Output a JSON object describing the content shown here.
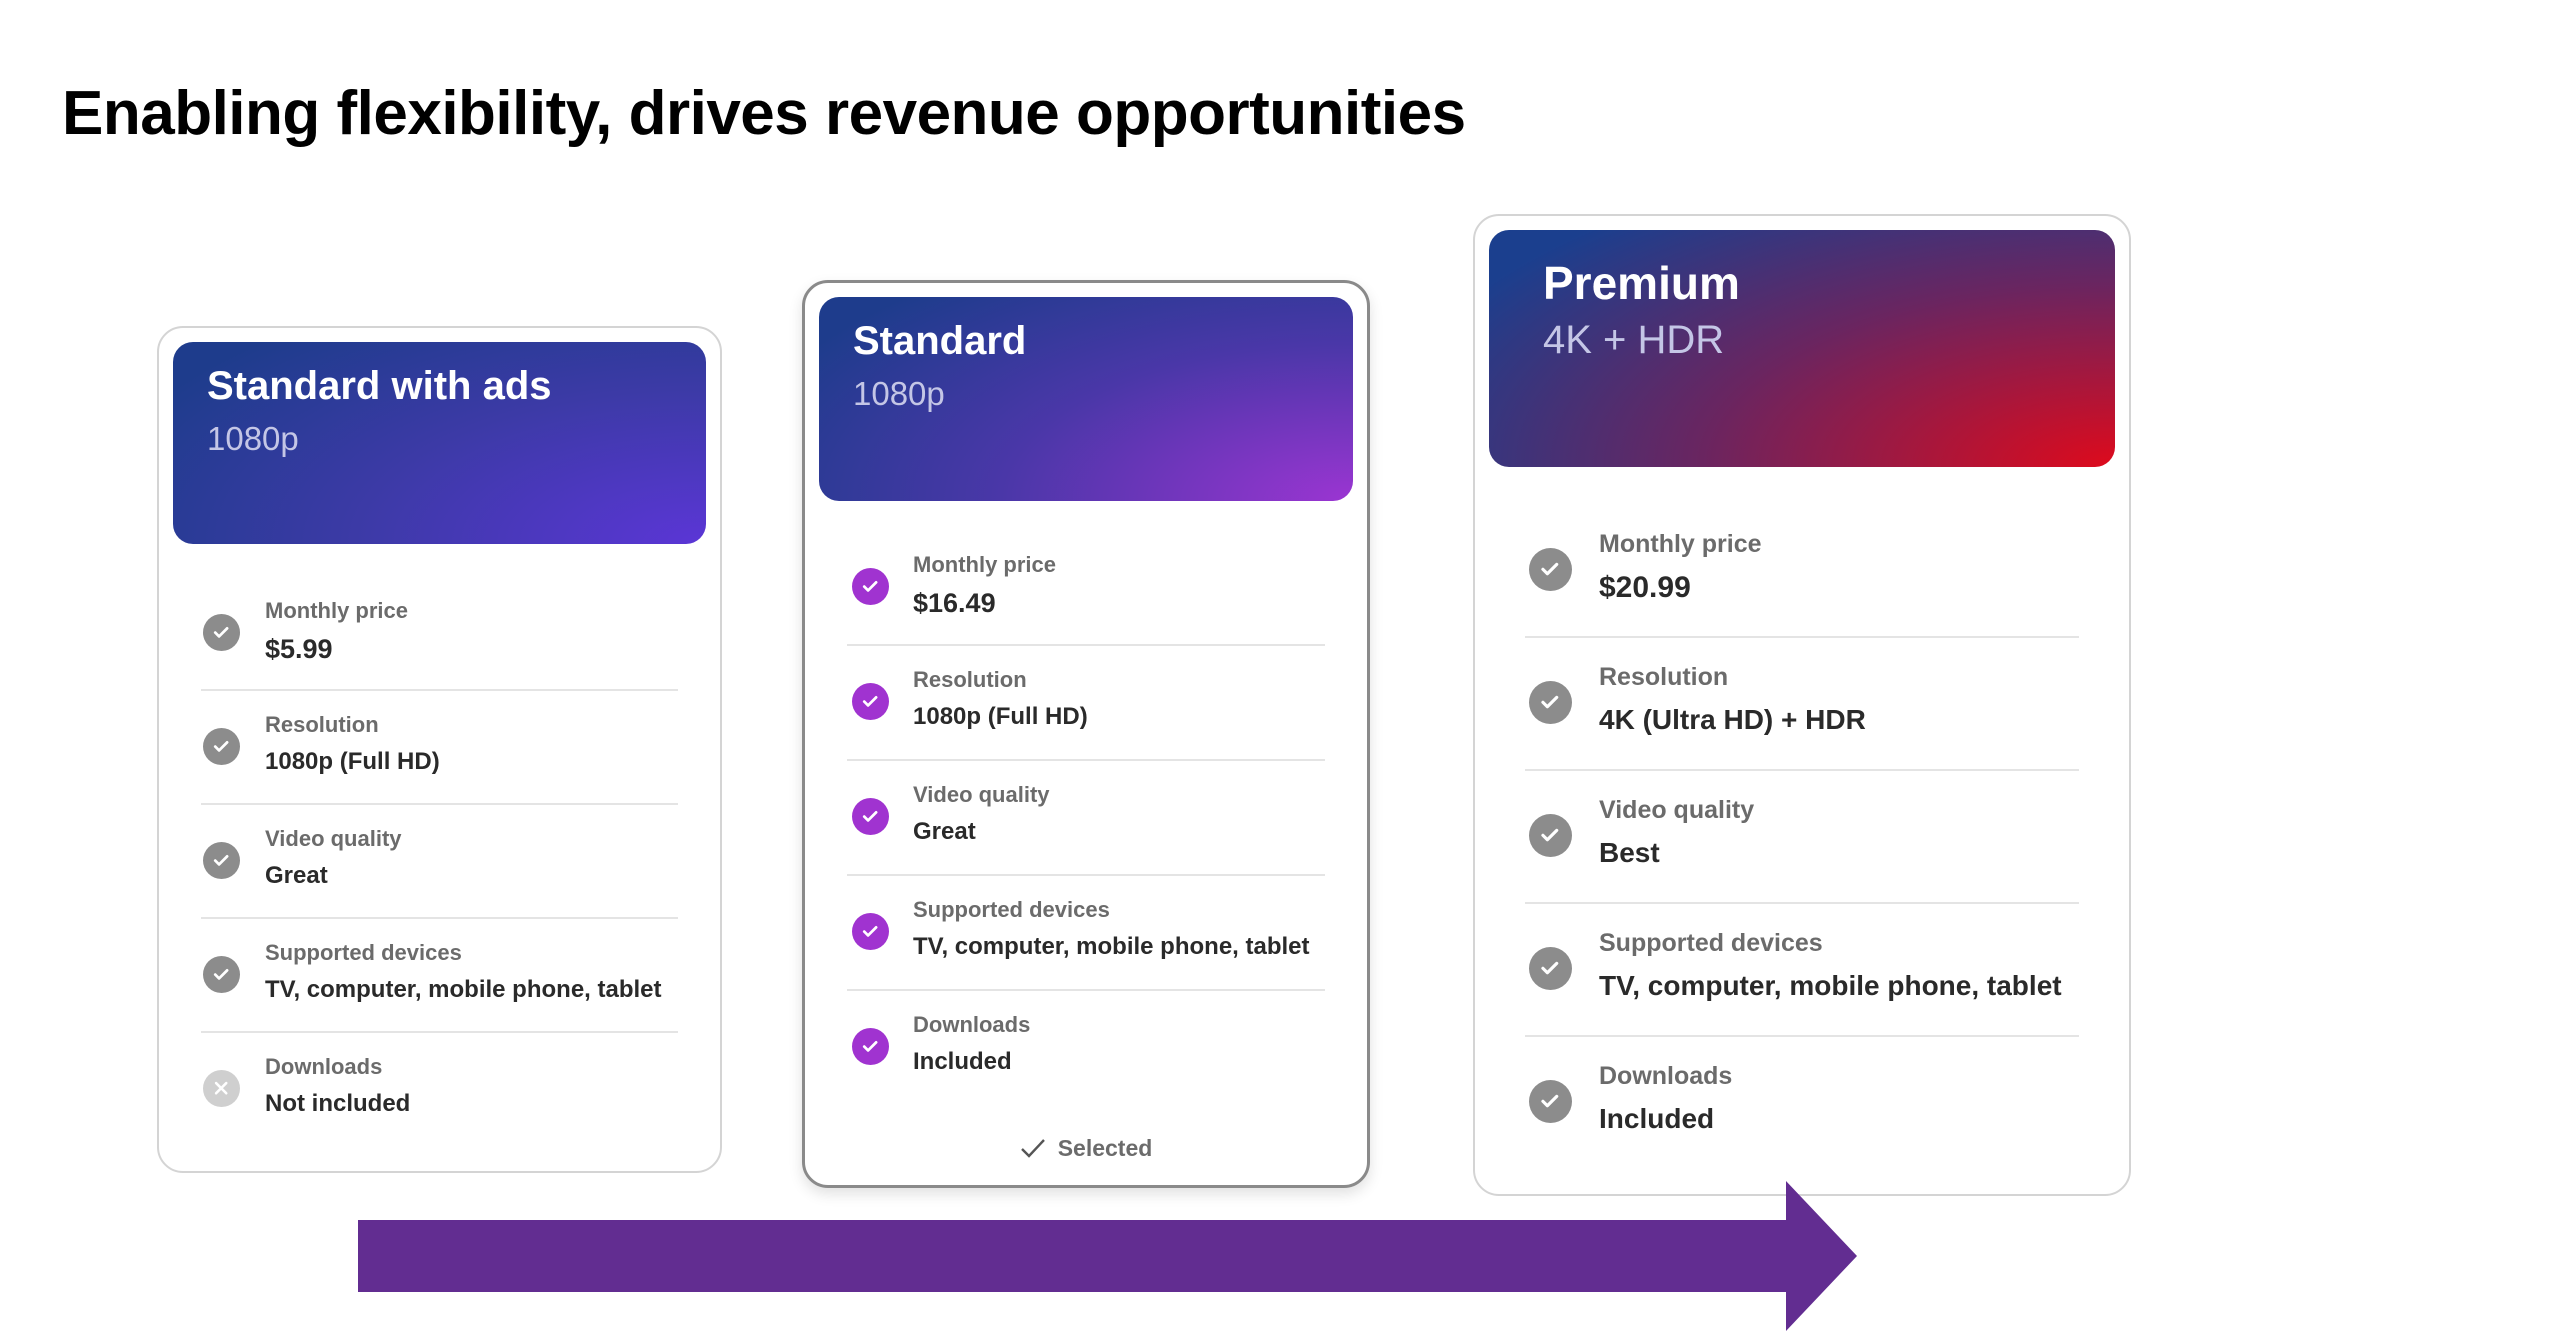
{
  "title": "Enabling flexibility, drives revenue opportunities",
  "colors": {
    "arrow": "#622d91",
    "check_gray": "#8c8c8c",
    "check_purple": "#a033d0",
    "cross_gray": "#cfcfcf"
  },
  "plans": [
    {
      "name": "Standard with ads",
      "subtitle": "1080p",
      "gradient": [
        "#1e3c8c",
        "#3c3aa6",
        "#5b36d6"
      ],
      "check_color": "gray",
      "selected": false,
      "features": [
        {
          "label": "Monthly price",
          "value": "$5.99",
          "icon": "check-icon"
        },
        {
          "label": "Resolution",
          "value": "1080p (Full HD)",
          "icon": "check-icon"
        },
        {
          "label": "Video quality",
          "value": "Great",
          "icon": "check-icon"
        },
        {
          "label": "Supported devices",
          "value": "TV, computer, mobile phone, tablet",
          "icon": "check-icon"
        },
        {
          "label": "Downloads",
          "value": "Not included",
          "icon": "cross-icon"
        }
      ]
    },
    {
      "name": "Standard",
      "subtitle": "1080p",
      "gradient": [
        "#1e3c8c",
        "#4a37a8",
        "#9b35d2"
      ],
      "check_color": "purple",
      "selected": true,
      "selected_label": "Selected",
      "features": [
        {
          "label": "Monthly price",
          "value": "$16.49",
          "icon": "check-icon"
        },
        {
          "label": "Resolution",
          "value": "1080p (Full HD)",
          "icon": "check-icon"
        },
        {
          "label": "Video quality",
          "value": "Great",
          "icon": "check-icon"
        },
        {
          "label": "Supported devices",
          "value": "TV, computer, mobile phone, tablet",
          "icon": "check-icon"
        },
        {
          "label": "Downloads",
          "value": "Included",
          "icon": "check-icon"
        }
      ]
    },
    {
      "name": "Premium",
      "subtitle": "4K + HDR",
      "gradient": [
        "#1b3f8e",
        "#6a2560",
        "#de0a1c"
      ],
      "check_color": "gray",
      "selected": false,
      "features": [
        {
          "label": "Monthly price",
          "value": "$20.99",
          "icon": "check-icon"
        },
        {
          "label": "Resolution",
          "value": "4K (Ultra HD) + HDR",
          "icon": "check-icon"
        },
        {
          "label": "Video quality",
          "value": "Best",
          "icon": "check-icon"
        },
        {
          "label": "Supported devices",
          "value": "TV, computer, mobile phone, tablet",
          "icon": "check-icon"
        },
        {
          "label": "Downloads",
          "value": "Included",
          "icon": "check-icon"
        }
      ]
    }
  ]
}
